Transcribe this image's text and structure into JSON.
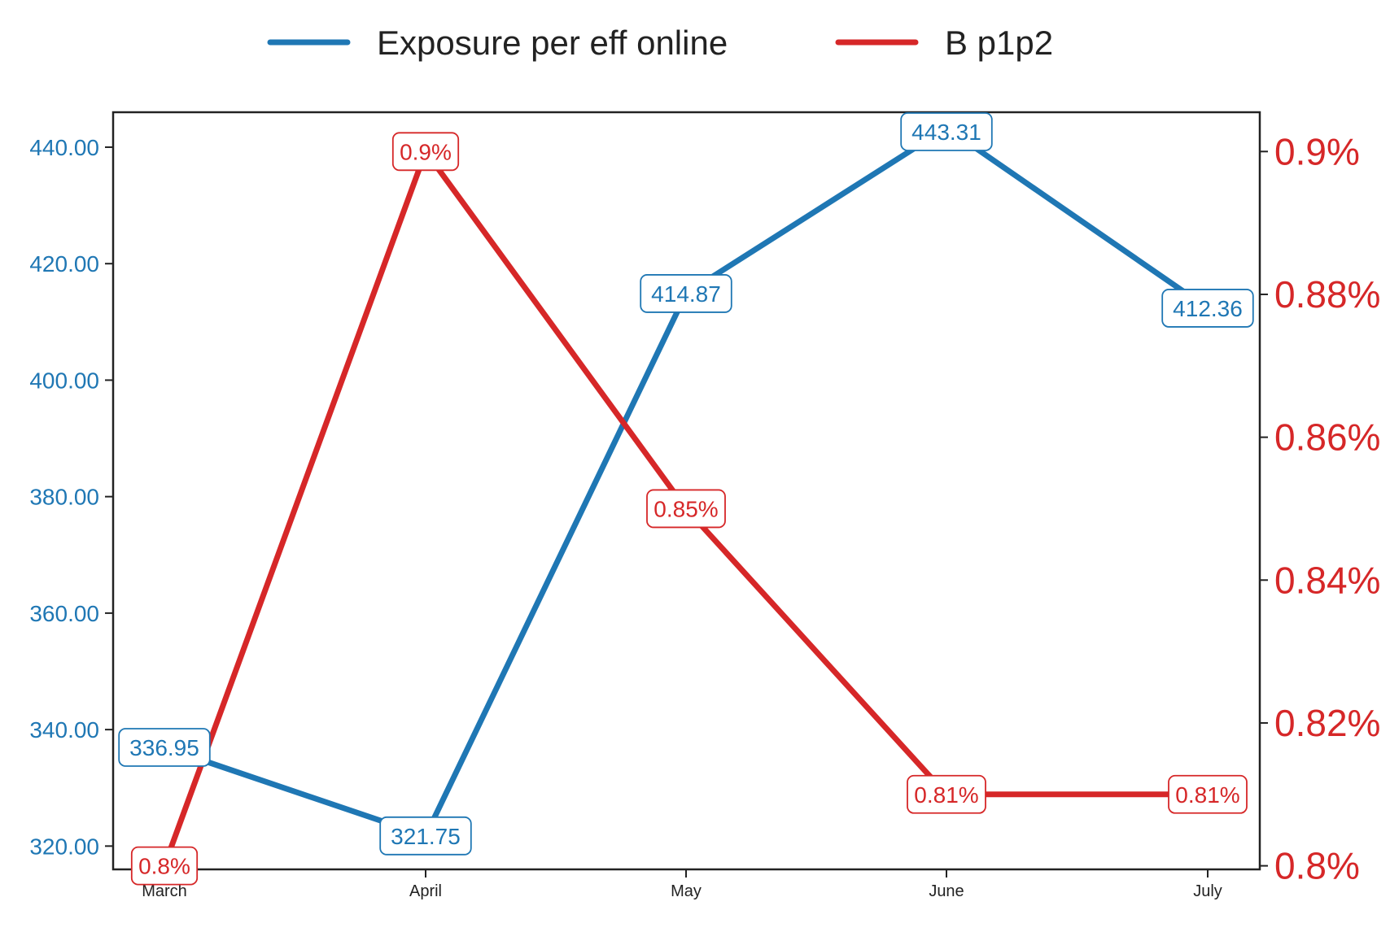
{
  "chart_data": {
    "type": "line",
    "categories": [
      "March",
      "April",
      "May",
      "June",
      "July"
    ],
    "series": [
      {
        "name": "Exposure per eff online",
        "axis": "left",
        "color": "#1f77b4",
        "values": [
          336.95,
          321.75,
          414.87,
          443.31,
          412.36
        ],
        "labels": [
          "336.95",
          "321.75",
          "414.87",
          "443.31",
          "412.36"
        ]
      },
      {
        "name": "B p1p2",
        "axis": "right",
        "color": "#d62728",
        "values": [
          0.8,
          0.9,
          0.85,
          0.81,
          0.81
        ],
        "labels": [
          "0.8%",
          "0.9%",
          "0.85%",
          "0.81%",
          "0.81%"
        ]
      }
    ],
    "y_left": {
      "ylim": [
        316,
        446
      ],
      "ticks": [
        320,
        340,
        360,
        380,
        400,
        420,
        440
      ],
      "tick_labels": [
        "320.00",
        "340.00",
        "360.00",
        "380.00",
        "400.00",
        "420.00",
        "440.00"
      ],
      "color": "#1f77b4"
    },
    "y_right": {
      "ylim": [
        0.7995,
        0.9055
      ],
      "ticks": [
        0.8,
        0.82,
        0.84,
        0.86,
        0.88,
        0.9
      ],
      "tick_labels": [
        "0.8%",
        "0.82%",
        "0.84%",
        "0.86%",
        "0.88%",
        "0.9%"
      ],
      "color": "#d62728"
    },
    "grid": false,
    "legend_position": "top-center"
  }
}
